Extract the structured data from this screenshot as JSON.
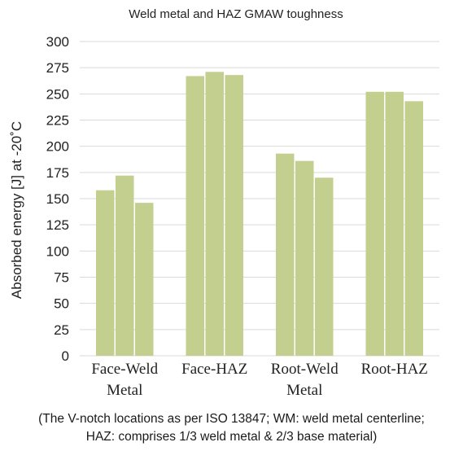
{
  "chart_data": {
    "type": "bar",
    "title": "Weld metal and HAZ GMAW toughness",
    "xlabel": "",
    "ylabel": "Absorbed energy [J] at -20˚C",
    "ylim": [
      0,
      300
    ],
    "yticks": [
      0,
      25,
      50,
      75,
      100,
      125,
      150,
      175,
      200,
      225,
      250,
      275,
      300
    ],
    "grid": true,
    "legend": "none",
    "categories": [
      [
        "Face-Weld",
        "Metal"
      ],
      [
        "Face-HAZ"
      ],
      [
        "Root-Weld",
        "Metal"
      ],
      [
        "Root-HAZ"
      ]
    ],
    "series": [
      {
        "values": [
          158,
          267,
          193,
          252
        ]
      },
      {
        "values": [
          172,
          271,
          186,
          252
        ]
      },
      {
        "values": [
          146,
          268,
          170,
          243
        ]
      }
    ]
  },
  "caption": {
    "line1": "(The V-notch locations as per ISO 13847; WM: weld metal centerline;",
    "line2": "HAZ: comprises 1/3 weld metal & 2/3 base material)"
  },
  "colors": {
    "bar": "#c2cf8e",
    "grid": "#d9d9d9",
    "text": "#222222"
  }
}
